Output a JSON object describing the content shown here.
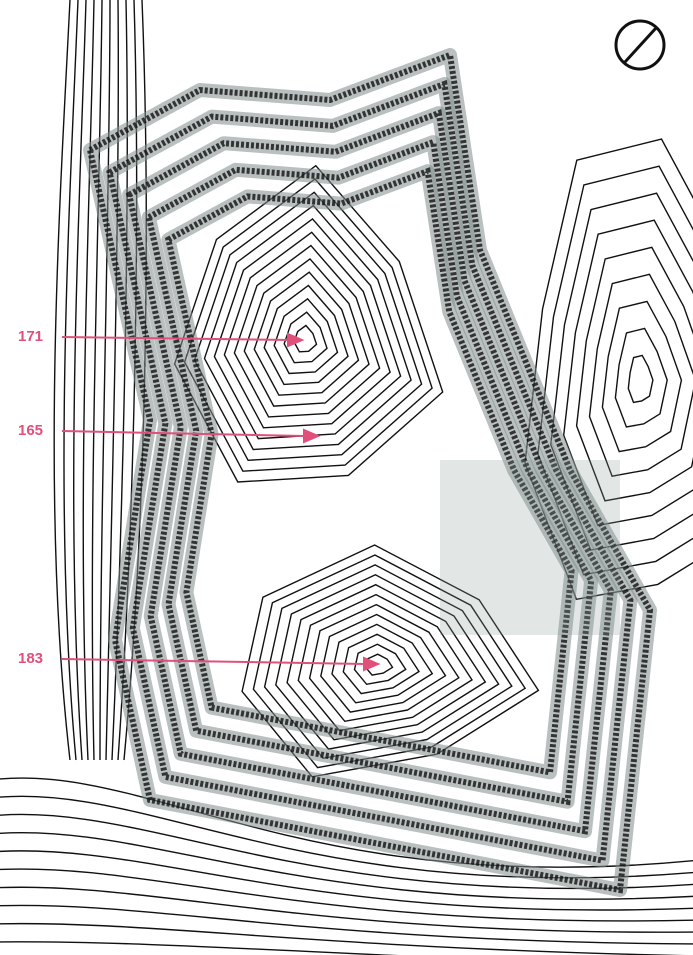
{
  "elevation_labels": [
    "171",
    "165",
    "183"
  ]
}
